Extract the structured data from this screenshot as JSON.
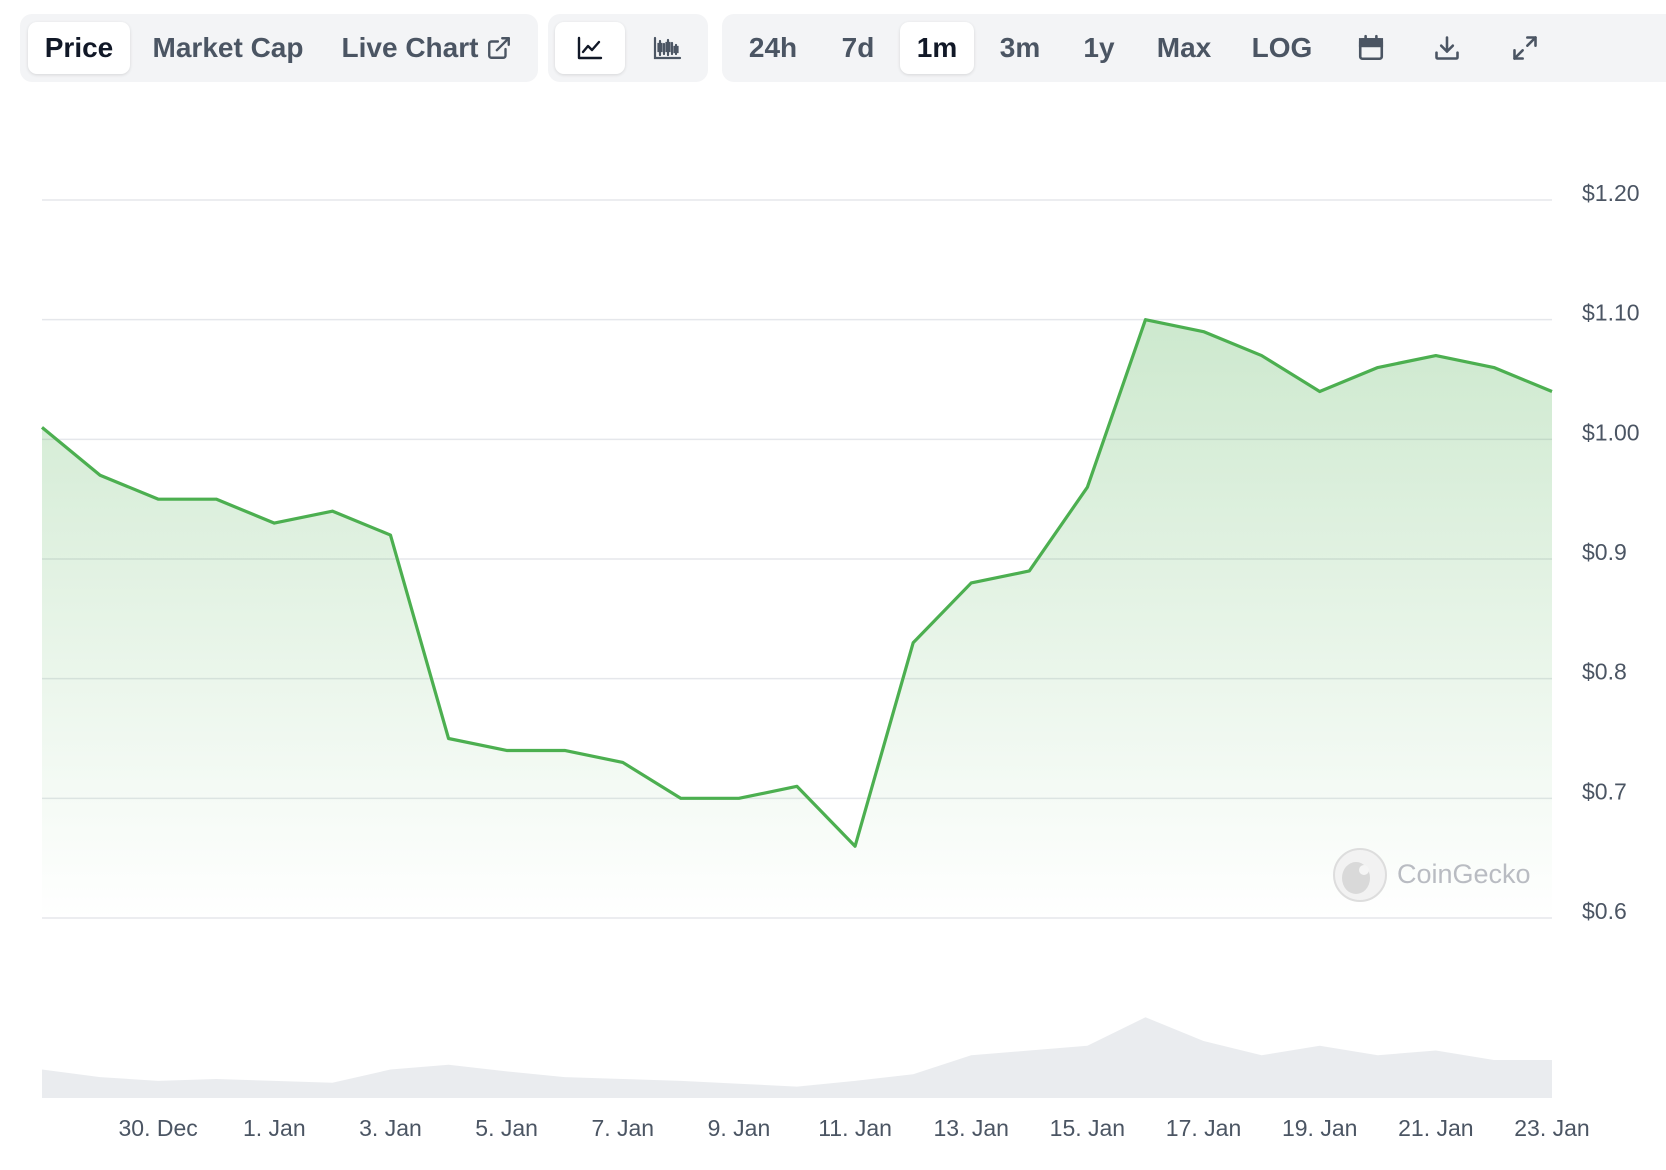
{
  "toolbar": {
    "tabs": [
      {
        "label": "Price"
      },
      {
        "label": "Market Cap"
      },
      {
        "label": "Live Chart"
      }
    ],
    "chart_types": [
      {
        "icon": "line-chart-icon"
      },
      {
        "icon": "candlestick-chart-icon"
      }
    ],
    "ranges": [
      {
        "label": "24h"
      },
      {
        "label": "7d"
      },
      {
        "label": "1m"
      },
      {
        "label": "3m"
      },
      {
        "label": "1y"
      },
      {
        "label": "Max"
      },
      {
        "label": "LOG"
      }
    ],
    "active_range": "1m",
    "active_tab": "Price",
    "active_chart_type": "line-chart-icon",
    "actions": [
      {
        "icon": "calendar-icon"
      },
      {
        "icon": "download-icon"
      },
      {
        "icon": "expand-icon"
      }
    ]
  },
  "watermark": {
    "text": "CoinGecko"
  },
  "colors": {
    "line": "#4caf50",
    "fill": "#4caf50",
    "grid": "#e5e7eb",
    "volume": "#e5e7eb"
  },
  "chart_data": {
    "type": "area",
    "x": [
      "28. Dec",
      "29. Dec",
      "30. Dec",
      "31. Dec",
      "1. Jan",
      "2. Jan",
      "3. Jan",
      "4. Jan",
      "5. Jan",
      "6. Jan",
      "7. Jan",
      "8. Jan",
      "9. Jan",
      "10. Jan",
      "11. Jan",
      "12. Jan",
      "13. Jan",
      "14. Jan",
      "15. Jan",
      "16. Jan",
      "17. Jan",
      "18. Jan",
      "19. Jan",
      "20. Jan",
      "21. Jan",
      "22. Jan",
      "23. Jan"
    ],
    "series": [
      {
        "values": [
          1.01,
          0.97,
          0.95,
          0.95,
          0.93,
          0.94,
          0.92,
          0.75,
          0.74,
          0.74,
          0.73,
          0.7,
          0.7,
          0.71,
          0.66,
          0.83,
          0.88,
          0.89,
          0.96,
          1.1,
          1.09,
          1.07,
          1.04,
          1.06,
          1.07,
          1.06,
          1.04
        ],
        "volume": [
          0.3,
          0.22,
          0.18,
          0.2,
          0.18,
          0.16,
          0.3,
          0.35,
          0.28,
          0.22,
          0.2,
          0.18,
          0.15,
          0.12,
          0.18,
          0.25,
          0.45,
          0.5,
          0.55,
          0.85,
          0.6,
          0.45,
          0.55,
          0.45,
          0.5,
          0.4,
          0.4
        ]
      }
    ],
    "x_ticks": [
      "30. Dec",
      "1. Jan",
      "3. Jan",
      "5. Jan",
      "7. Jan",
      "9. Jan",
      "11. Jan",
      "13. Jan",
      "15. Jan",
      "17. Jan",
      "19. Jan",
      "21. Jan",
      "23. Jan"
    ],
    "y_ticks": [
      "$1.20",
      "$1.10",
      "$1.00",
      "$0.9",
      "$0.8",
      "$0.7",
      "$0.6"
    ],
    "ylim": [
      0.6,
      1.2
    ],
    "grid": true,
    "y_axis_position": "right"
  }
}
